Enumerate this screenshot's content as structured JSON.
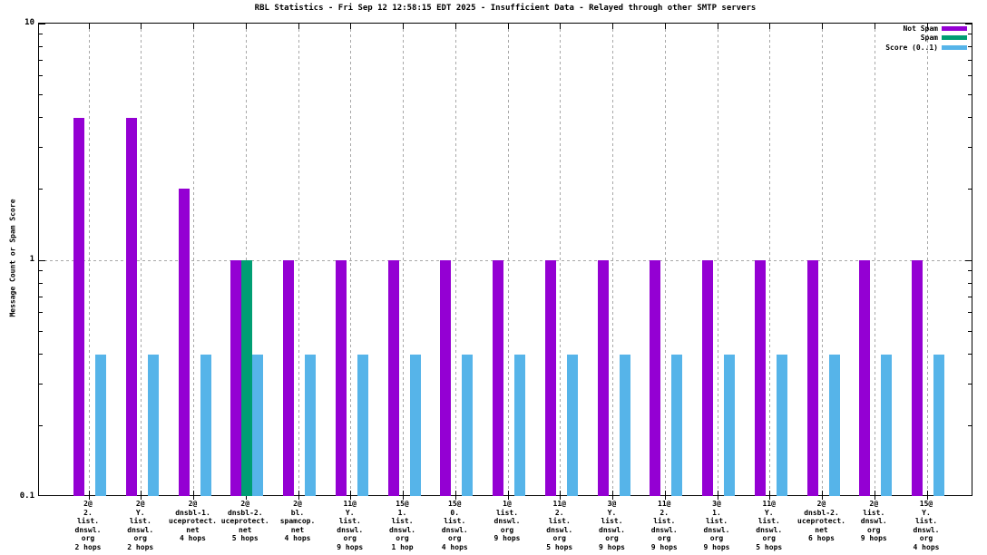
{
  "title": "RBL Statistics - Fri Sep 12 12:58:15 EDT 2025 - Insufficient Data - Relayed through other SMTP servers",
  "ylabel": "Message Count or Spam Score",
  "y_ticks": [
    {
      "label": "10",
      "value": 10
    },
    {
      "label": "1",
      "value": 1
    },
    {
      "label": "0.1",
      "value": 0.1
    }
  ],
  "legend": [
    {
      "label": "Not Spam",
      "color": "#9400d3"
    },
    {
      "label": "Spam",
      "color": "#009e73"
    },
    {
      "label": "Score (0..1)",
      "color": "#56b4e9"
    }
  ],
  "colors": {
    "not_spam": "#9400d3",
    "spam": "#009e73",
    "score": "#56b4e9",
    "grid": "#a8a8a8",
    "border": "#000000"
  },
  "chart_data": {
    "type": "bar",
    "scale": "log",
    "ylim": [
      0.1,
      10
    ],
    "grid": true,
    "legend_position": "top-right",
    "title": "RBL Statistics - Fri Sep 12 12:58:15 EDT 2025 - Insufficient Data - Relayed through other SMTP servers",
    "xlabel": "",
    "ylabel": "Message Count or Spam Score",
    "categories": [
      [
        "2@",
        "2.",
        "list.",
        "dnswl.",
        "org",
        "2 hops"
      ],
      [
        "2@",
        "Y.",
        "list.",
        "dnswl.",
        "org",
        "2 hops"
      ],
      [
        "2@",
        "dnsbl-1.",
        "uceprotect.",
        "net",
        "4 hops"
      ],
      [
        "2@",
        "dnsbl-2.",
        "uceprotect.",
        "net",
        "5 hops"
      ],
      [
        "2@",
        "bl.",
        "spamcop.",
        "net",
        "4 hops"
      ],
      [
        "11@",
        "Y.",
        "list.",
        "dnswl.",
        "org",
        "9 hops"
      ],
      [
        "15@",
        "1.",
        "list.",
        "dnswl.",
        "org",
        "1 hop"
      ],
      [
        "15@",
        "0.",
        "list.",
        "dnswl.",
        "org",
        "4 hops"
      ],
      [
        "1@",
        "list.",
        "dnswl.",
        "org",
        "9 hops"
      ],
      [
        "11@",
        "2.",
        "list.",
        "dnswl.",
        "org",
        "5 hops"
      ],
      [
        "3@",
        "Y.",
        "list.",
        "dnswl.",
        "org",
        "9 hops"
      ],
      [
        "11@",
        "2.",
        "list.",
        "dnswl.",
        "org",
        "9 hops"
      ],
      [
        "3@",
        "1.",
        "list.",
        "dnswl.",
        "org",
        "9 hops"
      ],
      [
        "11@",
        "Y.",
        "list.",
        "dnswl.",
        "org",
        "5 hops"
      ],
      [
        "2@",
        "dnsbl-2.",
        "uceprotect.",
        "net",
        "6 hops"
      ],
      [
        "2@",
        "list.",
        "dnswl.",
        "org",
        "9 hops"
      ],
      [
        "15@",
        "Y.",
        "list.",
        "dnswl.",
        "org",
        "4 hops"
      ]
    ],
    "series": [
      {
        "name": "Not Spam",
        "color": "#9400d3",
        "values": [
          4,
          4,
          2,
          1,
          1,
          1,
          1,
          1,
          1,
          1,
          1,
          1,
          1,
          1,
          1,
          1,
          1
        ]
      },
      {
        "name": "Spam",
        "color": "#009e73",
        "values": [
          0,
          0,
          0,
          1,
          0,
          0,
          0,
          0,
          0,
          0,
          0,
          0,
          0,
          0,
          0,
          0,
          0
        ]
      },
      {
        "name": "Score (0..1)",
        "color": "#56b4e9",
        "values": [
          0.4,
          0.4,
          0.4,
          0.4,
          0.4,
          0.4,
          0.4,
          0.4,
          0.4,
          0.4,
          0.4,
          0.4,
          0.4,
          0.4,
          0.4,
          0.4,
          0.4
        ]
      }
    ]
  }
}
